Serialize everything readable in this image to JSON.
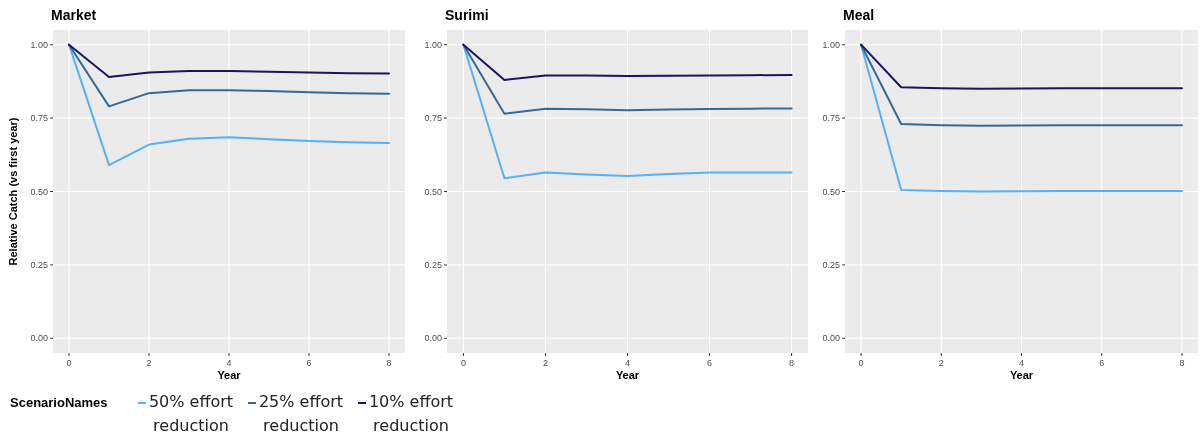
{
  "chart_data": [
    {
      "type": "line",
      "title": "Market",
      "xlabel": "Year",
      "ylabel": "Relative Catch (vs first year)",
      "legend_title": "ScenarioNames",
      "legend": "bottom",
      "grid": true,
      "x": [
        0,
        1,
        2,
        3,
        4,
        5,
        6,
        7,
        8
      ],
      "xlim": [
        -0.4,
        8.4
      ],
      "xticks": [
        0,
        2,
        4,
        6,
        8
      ],
      "ylim": [
        -0.05,
        1.05
      ],
      "yticks": [
        {
          "value": 0,
          "label": "0.00"
        },
        {
          "value": 0.25,
          "label": "0.25"
        },
        {
          "value": 0.5,
          "label": "0.50"
        },
        {
          "value": 0.75,
          "label": "0.75"
        },
        {
          "value": 1,
          "label": "1.00"
        }
      ],
      "series": [
        {
          "name": "50% effort reduction",
          "color": "#56b1f7",
          "values": [
            1,
            0.59,
            0.66,
            0.68,
            0.685,
            0.678,
            0.672,
            0.668,
            0.665
          ]
        },
        {
          "name": "25% effort reduction",
          "color": "#336a98",
          "values": [
            1,
            0.79,
            0.835,
            0.845,
            0.845,
            0.842,
            0.838,
            0.835,
            0.833
          ]
        },
        {
          "name": "10% effort reduction",
          "color": "#1b1464",
          "values": [
            1,
            0.89,
            0.905,
            0.91,
            0.91,
            0.908,
            0.905,
            0.903,
            0.902
          ]
        }
      ]
    },
    {
      "type": "line",
      "title": "Surimi",
      "xlabel": "Year",
      "grid": true,
      "x": [
        0,
        1,
        2,
        3,
        4,
        5,
        6,
        7,
        8
      ],
      "xlim": [
        -0.4,
        8.4
      ],
      "xticks": [
        0,
        2,
        4,
        6,
        8
      ],
      "ylim": [
        -0.05,
        1.05
      ],
      "yticks": [
        {
          "value": 0,
          "label": "0.00"
        },
        {
          "value": 0.25,
          "label": "0.25"
        },
        {
          "value": 0.5,
          "label": "0.50"
        },
        {
          "value": 0.75,
          "label": "0.75"
        },
        {
          "value": 1,
          "label": "1.00"
        }
      ],
      "series": [
        {
          "color": "#56b1f7",
          "values": [
            1,
            0.545,
            0.565,
            0.558,
            0.553,
            0.56,
            0.565,
            0.565,
            0.565
          ]
        },
        {
          "color": "#336a98",
          "values": [
            1,
            0.765,
            0.782,
            0.78,
            0.777,
            0.779,
            0.781,
            0.782,
            0.783
          ]
        },
        {
          "color": "#1b1464",
          "values": [
            1,
            0.88,
            0.895,
            0.895,
            0.893,
            0.894,
            0.895,
            0.896,
            0.897
          ]
        }
      ]
    },
    {
      "type": "line",
      "title": "Meal",
      "xlabel": "Year",
      "grid": true,
      "x": [
        0,
        1,
        2,
        3,
        4,
        5,
        6,
        7,
        8
      ],
      "xlim": [
        -0.4,
        8.4
      ],
      "xticks": [
        0,
        2,
        4,
        6,
        8
      ],
      "ylim": [
        -0.05,
        1.05
      ],
      "yticks": [
        {
          "value": 0,
          "label": "0.00"
        },
        {
          "value": 0.25,
          "label": "0.25"
        },
        {
          "value": 0.5,
          "label": "0.50"
        },
        {
          "value": 0.75,
          "label": "0.75"
        },
        {
          "value": 1,
          "label": "1.00"
        }
      ],
      "series": [
        {
          "color": "#56b1f7",
          "values": [
            1,
            0.505,
            0.502,
            0.5,
            0.501,
            0.502,
            0.502,
            0.502,
            0.502
          ]
        },
        {
          "color": "#336a98",
          "values": [
            1,
            0.73,
            0.726,
            0.724,
            0.725,
            0.726,
            0.726,
            0.726,
            0.726
          ]
        },
        {
          "color": "#1b1464",
          "values": [
            1,
            0.855,
            0.852,
            0.85,
            0.851,
            0.852,
            0.852,
            0.852,
            0.852
          ]
        }
      ]
    }
  ]
}
